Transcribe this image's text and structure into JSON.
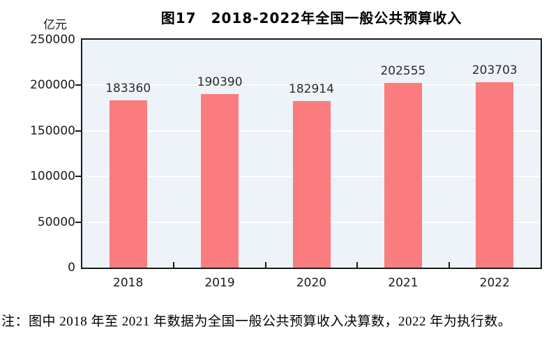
{
  "figure": {
    "title": "图17　2018-2022年全国一般公共预算收入",
    "unit_label": "亿元",
    "note": "注：图中 2018 年至 2021 年数据为全国一般公共预算收入决算数，2022 年为执行数。"
  },
  "chart_data": {
    "type": "bar",
    "title": "图17　2018-2022年全国一般公共预算收入",
    "categories": [
      "2018",
      "2019",
      "2020",
      "2021",
      "2022"
    ],
    "values": [
      183360,
      190390,
      182914,
      202555,
      203703
    ],
    "xlabel": "",
    "ylabel": "亿元",
    "ylim": [
      0,
      250000
    ],
    "y_ticks": [
      0,
      50000,
      100000,
      150000,
      200000,
      250000
    ],
    "grid": true,
    "legend": "none",
    "colors": {
      "bar": "#FA7C7F",
      "plot_bg": "#EDF3F8",
      "grid_line": "#FFFFFF",
      "axis": "#1A1A1A",
      "label_text": "#2B2B2B"
    }
  }
}
